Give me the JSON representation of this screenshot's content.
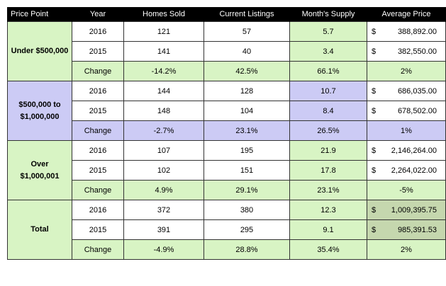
{
  "headers": [
    "Price Point",
    "Year",
    "Homes Sold",
    "Current Listings",
    "Month's Supply",
    "Average Price"
  ],
  "currency_symbol": "$",
  "groups": [
    {
      "label_lines": [
        "Under $500,000"
      ],
      "rows": [
        {
          "year": "2016",
          "homes_sold": "121",
          "listings": "57",
          "supply": "5.7",
          "avg_price": "388,892.00"
        },
        {
          "year": "2015",
          "homes_sold": "141",
          "listings": "40",
          "supply": "3.4",
          "avg_price": "382,550.00"
        },
        {
          "year": "Change",
          "homes_sold": "-14.2%",
          "listings": "42.5%",
          "supply": "66.1%",
          "avg_price": "2%"
        }
      ]
    },
    {
      "label_lines": [
        "$500,000 to",
        "$1,000,000"
      ],
      "rows": [
        {
          "year": "2016",
          "homes_sold": "144",
          "listings": "128",
          "supply": "10.7",
          "avg_price": "686,035.00"
        },
        {
          "year": "2015",
          "homes_sold": "148",
          "listings": "104",
          "supply": "8.4",
          "avg_price": "678,502.00"
        },
        {
          "year": "Change",
          "homes_sold": "-2.7%",
          "listings": "23.1%",
          "supply": "26.5%",
          "avg_price": "1%"
        }
      ]
    },
    {
      "label_lines": [
        "Over",
        "$1,000,001"
      ],
      "rows": [
        {
          "year": "2016",
          "homes_sold": "107",
          "listings": "195",
          "supply": "21.9",
          "avg_price": "2,146,264.00"
        },
        {
          "year": "2015",
          "homes_sold": "102",
          "listings": "151",
          "supply": "17.8",
          "avg_price": "2,264,022.00"
        },
        {
          "year": "Change",
          "homes_sold": "4.9%",
          "listings": "29.1%",
          "supply": "23.1%",
          "avg_price": "-5%"
        }
      ]
    },
    {
      "label_lines": [
        "Total"
      ],
      "rows": [
        {
          "year": "2016",
          "homes_sold": "372",
          "listings": "380",
          "supply": "12.3",
          "avg_price": "1,009,395.75"
        },
        {
          "year": "2015",
          "homes_sold": "391",
          "listings": "295",
          "supply": "9.1",
          "avg_price": "985,391.53"
        },
        {
          "year": "Change",
          "homes_sold": "-4.9%",
          "listings": "28.8%",
          "supply": "35.4%",
          "avg_price": "2%"
        }
      ]
    }
  ],
  "colors": {
    "header_bg": "#000000",
    "green": "#d8f4c4",
    "purple": "#cccbf5",
    "olive": "#c5d7ae",
    "white": "#ffffff"
  }
}
